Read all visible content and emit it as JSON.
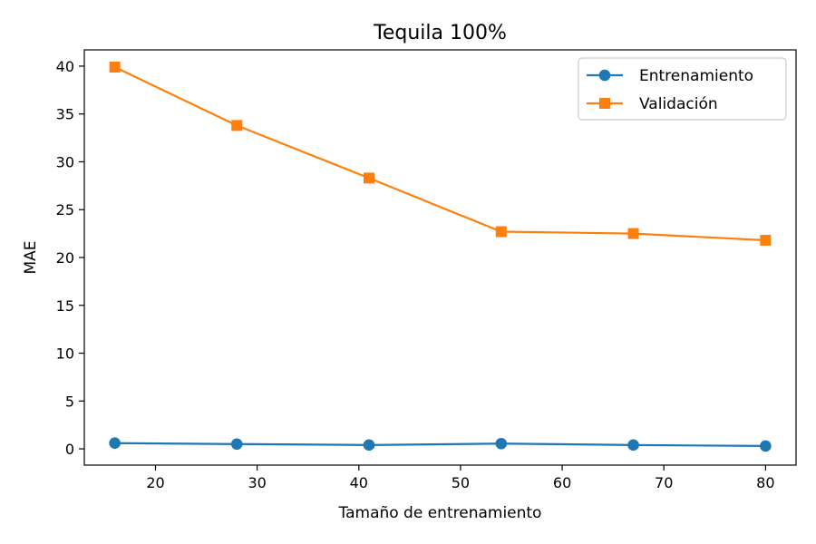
{
  "chart_data": {
    "type": "line",
    "title": "Tequila 100%",
    "xlabel": "Tamaño de entrenamiento",
    "ylabel": "MAE",
    "x": [
      16,
      28,
      41,
      54,
      67,
      80
    ],
    "xlim": [
      13,
      83
    ],
    "ylim": [
      -1.7,
      41.7
    ],
    "xticks": [
      20,
      30,
      40,
      50,
      60,
      70,
      80
    ],
    "yticks": [
      0,
      5,
      10,
      15,
      20,
      25,
      30,
      35,
      40
    ],
    "grid": false,
    "legend": "top-right",
    "series": [
      {
        "name": "Entrenamiento",
        "color": "#1f77b4",
        "marker": "circle",
        "values": [
          0.6,
          0.5,
          0.4,
          0.55,
          0.4,
          0.3
        ]
      },
      {
        "name": "Validación",
        "color": "#ff7f0e",
        "marker": "square",
        "values": [
          39.9,
          33.8,
          28.3,
          22.7,
          22.5,
          21.8
        ]
      }
    ]
  }
}
